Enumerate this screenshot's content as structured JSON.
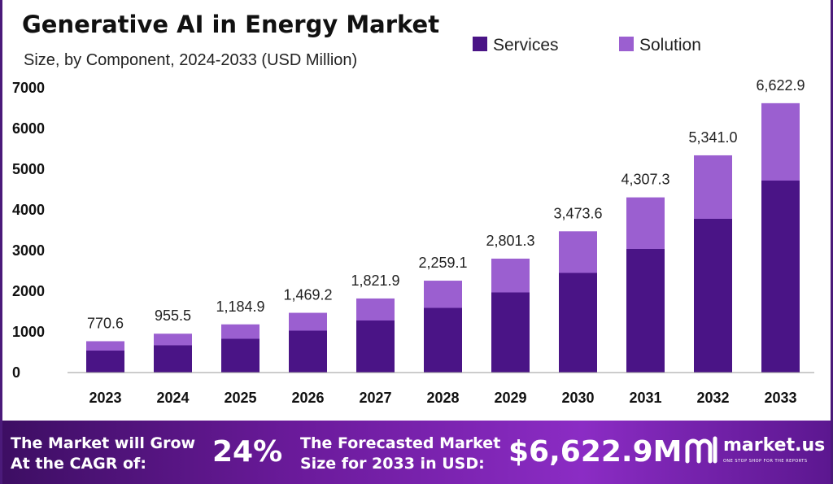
{
  "colors": {
    "services": "#4a1486",
    "solution": "#9b5fd0",
    "footer_start": "#3d0e63",
    "footer_end": "#8b2cc4"
  },
  "chart_data": {
    "type": "bar",
    "stacked": true,
    "title": "Generative AI in Energy Market",
    "subtitle": "Size, by Component, 2024-2033 (USD Million)",
    "categories": [
      "2023",
      "2024",
      "2025",
      "2026",
      "2027",
      "2028",
      "2029",
      "2030",
      "2031",
      "2032",
      "2033"
    ],
    "series": [
      {
        "name": "Services",
        "values": [
          540,
          670,
          830,
          1030,
          1280,
          1590,
          1970,
          2450,
          3040,
          3780,
          4720
        ]
      },
      {
        "name": "Solution",
        "values": [
          230.6,
          285.5,
          354.9,
          439.2,
          541.9,
          669.1,
          831.3,
          1023.6,
          1267.3,
          1561.0,
          1902.9
        ]
      }
    ],
    "totals": [
      770.6,
      955.5,
      1184.9,
      1469.2,
      1821.9,
      2259.1,
      2801.3,
      3473.6,
      4307.3,
      5341.0,
      6622.9
    ],
    "total_labels": [
      "770.6",
      "955.5",
      "1,184.9",
      "1,469.2",
      "1,821.9",
      "2,259.1",
      "2,801.3",
      "3,473.6",
      "4,307.3",
      "5,341.0",
      "6,622.9"
    ],
    "yticks": [
      0,
      1000,
      2000,
      3000,
      4000,
      5000,
      6000,
      7000
    ],
    "ylim": [
      0,
      7000
    ],
    "legend_position": "top-right",
    "grid": false
  },
  "footer": {
    "cagr_line1": "The Market will Grow",
    "cagr_line2": "At the CAGR of:",
    "cagr_value": "24%",
    "forecast_line1": "The Forecasted Market",
    "forecast_line2": "Size for 2033 in USD:",
    "forecast_value": "$6,622.9M",
    "brand_name": "market.us",
    "brand_tagline": "ONE STOP SHOP FOR THE REPORTS",
    "brand_icon": "market-us-logo-icon"
  }
}
